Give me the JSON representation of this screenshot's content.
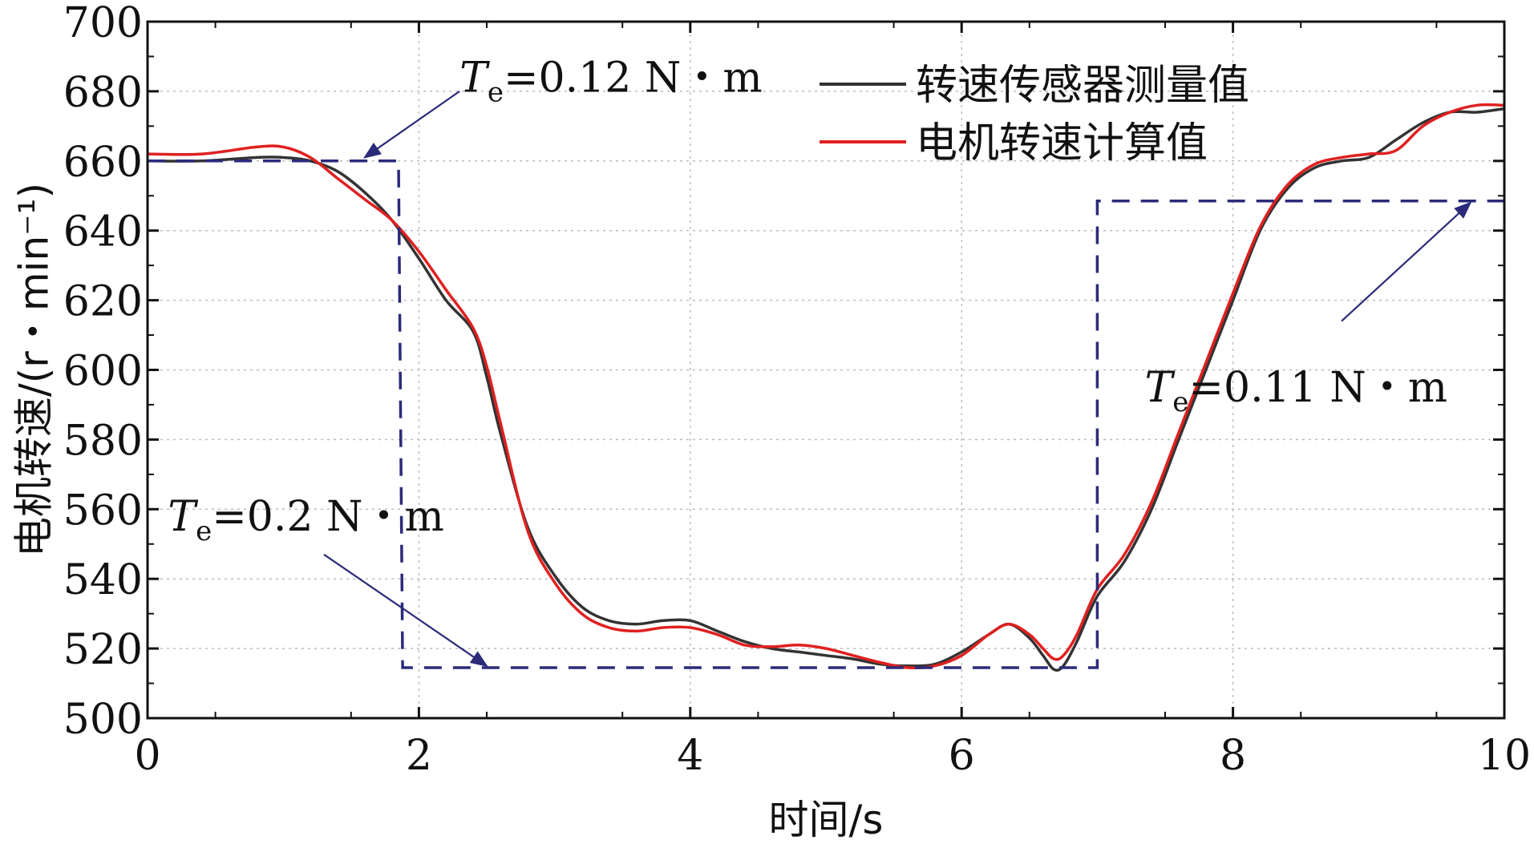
{
  "chart_data": {
    "type": "line",
    "xlabel": "时间/s",
    "ylabel": "电机转速/(r・min⁻¹)",
    "xlim": [
      0,
      10
    ],
    "ylim": [
      500,
      700
    ],
    "xticks": [
      0,
      2,
      4,
      6,
      8,
      10
    ],
    "xtick_labels": [
      "0",
      "2",
      "4",
      "6",
      "8",
      "10"
    ],
    "yticks": [
      500,
      520,
      540,
      560,
      580,
      600,
      620,
      640,
      660,
      680,
      700
    ],
    "ytick_labels": [
      "500",
      "520",
      "540",
      "560",
      "580",
      "600",
      "620",
      "640",
      "660",
      "680",
      "700"
    ],
    "grid": true,
    "legend_position": "top-right",
    "series": [
      {
        "name": "转速传感器测量值",
        "color": "#333333",
        "x": [
          0,
          0.4,
          0.8,
          1.0,
          1.2,
          1.4,
          1.6,
          1.8,
          2.0,
          2.2,
          2.4,
          2.5,
          2.6,
          2.8,
          3.0,
          3.2,
          3.4,
          3.6,
          3.8,
          4.0,
          4.2,
          4.4,
          4.6,
          4.8,
          5.0,
          5.2,
          5.4,
          5.6,
          5.8,
          6.0,
          6.2,
          6.35,
          6.5,
          6.6,
          6.68,
          6.75,
          6.85,
          7.0,
          7.2,
          7.4,
          7.6,
          7.8,
          8.0,
          8.2,
          8.4,
          8.6,
          8.8,
          9.0,
          9.2,
          9.4,
          9.6,
          9.8,
          10.0
        ],
        "y": [
          660,
          660,
          661,
          661,
          660,
          657,
          651,
          643,
          632,
          620,
          611,
          598,
          582,
          555,
          541,
          532,
          528,
          527,
          528,
          528,
          525,
          522,
          520,
          519,
          518,
          517,
          515.5,
          515,
          515.5,
          519,
          524,
          527,
          523,
          518,
          514,
          515,
          522,
          535,
          545,
          560,
          580,
          600,
          620,
          640,
          652,
          658,
          660,
          661,
          666,
          671,
          674,
          674,
          675
        ]
      },
      {
        "name": "电机转速计算值",
        "color": "#e02020",
        "x": [
          0,
          0.4,
          0.8,
          1.0,
          1.2,
          1.4,
          1.6,
          1.8,
          2.0,
          2.2,
          2.4,
          2.5,
          2.6,
          2.8,
          3.0,
          3.2,
          3.4,
          3.6,
          3.8,
          4.0,
          4.2,
          4.4,
          4.6,
          4.8,
          5.0,
          5.2,
          5.4,
          5.6,
          5.8,
          6.0,
          6.2,
          6.35,
          6.5,
          6.6,
          6.68,
          6.75,
          6.85,
          7.0,
          7.2,
          7.4,
          7.6,
          7.8,
          8.0,
          8.2,
          8.4,
          8.6,
          8.8,
          9.0,
          9.2,
          9.4,
          9.6,
          9.8,
          10.0
        ],
        "y": [
          662,
          662,
          664,
          664,
          661,
          655,
          649,
          643,
          634,
          623,
          612,
          601,
          585,
          554,
          539,
          530,
          526,
          525,
          526,
          526,
          524,
          521,
          520.5,
          521,
          520,
          518,
          516,
          514.5,
          515,
          518,
          524,
          527,
          524,
          520,
          517,
          518,
          524,
          537,
          547,
          562,
          582,
          602,
          622,
          641,
          653,
          659,
          661,
          662,
          663,
          670,
          674,
          676,
          676
        ]
      },
      {
        "name": "",
        "color": "#2b2b7a",
        "style": "dashed",
        "x": [
          0,
          1.85,
          1.88,
          7.0,
          7.0,
          10.0
        ],
        "y": [
          660,
          660,
          514.5,
          514.5,
          648.5,
          648.5
        ]
      }
    ],
    "annotations": [
      {
        "label_var": "T",
        "label_sub": "e",
        "label_rest": "=0.12 N・m",
        "text_at": [
          2.3,
          684
        ],
        "arrow_from": [
          2.3,
          680
        ],
        "arrow_to": [
          1.6,
          661
        ]
      },
      {
        "label_var": "T",
        "label_sub": "e",
        "label_rest": "=0.2 N・m",
        "text_at": [
          0.15,
          558
        ],
        "arrow_from": [
          1.3,
          547
        ],
        "arrow_to": [
          2.5,
          515
        ]
      },
      {
        "label_var": "T",
        "label_sub": "e",
        "label_rest": "=0.11 N・m",
        "text_at": [
          7.35,
          595
        ],
        "arrow_from": [
          8.8,
          614
        ],
        "arrow_to": [
          9.75,
          648
        ]
      }
    ]
  }
}
